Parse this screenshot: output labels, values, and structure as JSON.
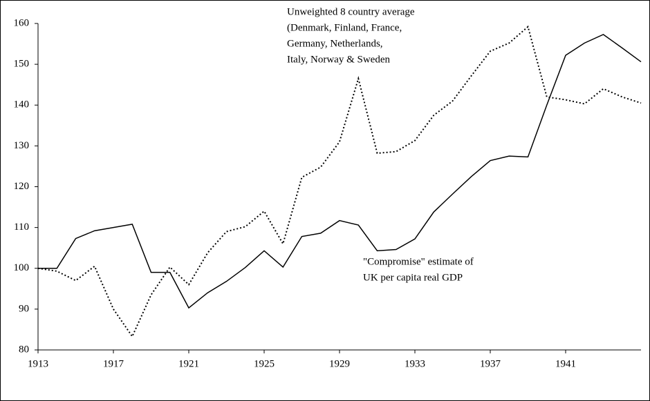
{
  "chart_data": {
    "type": "line",
    "x": [
      1913,
      1914,
      1915,
      1916,
      1917,
      1918,
      1919,
      1920,
      1921,
      1922,
      1923,
      1924,
      1925,
      1926,
      1927,
      1928,
      1929,
      1930,
      1931,
      1932,
      1933,
      1934,
      1935,
      1936,
      1937,
      1938,
      1939,
      1940,
      1941,
      1942,
      1943,
      1944,
      1945
    ],
    "series": [
      {
        "color": "#000000",
        "dash": "solid",
        "values": [
          100,
          100,
          107.3,
          109.2,
          110,
          110.8,
          99,
          99,
          90.3,
          94,
          96.8,
          100.2,
          104.3,
          100.3,
          107.8,
          108.6,
          111.7,
          110.6,
          104.3,
          104.6,
          107.2,
          113.8,
          118.2,
          122.5,
          126.4,
          127.5,
          127.3,
          140,
          152.2,
          155.2,
          157.3,
          154,
          150.6
        ]
      },
      {
        "color": "#000000",
        "dash": "dotted",
        "values": [
          100,
          99.3,
          97,
          100.5,
          90,
          83.3,
          93.5,
          100.3,
          96,
          103.8,
          109,
          110.2,
          114,
          106,
          122.3,
          124.8,
          131,
          146.5,
          128.2,
          128.6,
          131.3,
          137.5,
          141,
          147.2,
          153.2,
          155.2,
          159.2,
          142,
          141.3,
          140.3,
          144,
          142,
          140.5
        ]
      }
    ],
    "annotations": [
      {
        "lines": [
          "Unweighted 8 country average",
          "(Denmark, Finland, France,",
          "Germany, Netherlands,",
          "Italy, Norway & Sweden"
        ]
      },
      {
        "lines": [
          "\"Compromise\" estimate of",
          "UK per capita real  GDP"
        ]
      }
    ],
    "xlim": [
      1913,
      1945
    ],
    "xticks": [
      1913,
      1917,
      1921,
      1925,
      1929,
      1933,
      1937,
      1941
    ],
    "ylim": [
      80,
      160
    ],
    "yticks": [
      80,
      90,
      100,
      110,
      120,
      130,
      140,
      150,
      160
    ],
    "grid": false
  }
}
